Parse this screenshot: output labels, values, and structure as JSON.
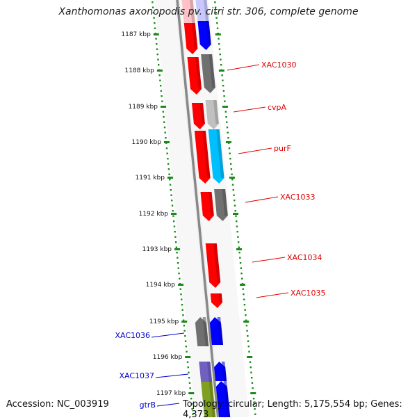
{
  "header": {
    "title": "Xanthomonas axonopodis pv. citri str. 306, complete genome"
  },
  "footer": {
    "accession": "Accession: NC_003919",
    "topology": "Topology: circular; Length: 5,175,554 bp; Genes: 4,373"
  },
  "ruler": {
    "labels": [
      "1187 kbp",
      "1188 kbp",
      "1189 kbp",
      "1190 kbp",
      "1191 kbp",
      "1192 kbp",
      "1193 kbp",
      "1194 kbp",
      "1195 kbp",
      "1196 kbp",
      "1197 kbp"
    ]
  },
  "gene_labels": [
    {
      "name": "XAC1030",
      "strand": "forward"
    },
    {
      "name": "cvpA",
      "strand": "forward"
    },
    {
      "name": "purF",
      "strand": "forward"
    },
    {
      "name": "XAC1033",
      "strand": "forward"
    },
    {
      "name": "XAC1034",
      "strand": "forward"
    },
    {
      "name": "XAC1035",
      "strand": "forward"
    },
    {
      "name": "XAC1036",
      "strand": "reverse"
    },
    {
      "name": "XAC1037",
      "strand": "reverse"
    },
    {
      "name": "gtrB",
      "strand": "reverse"
    }
  ],
  "colors": {
    "forward_label": "#e00000",
    "reverse_label": "#0000cc",
    "forward_gene": "#ff0000",
    "reverse_gene": "#0000ff",
    "cog_gray": "#707070",
    "cog_light": "#c0c0c0",
    "cog_cyan": "#00bfff",
    "cog_purple": "#7060c0",
    "cog_olive": "#7fa020",
    "ruler": "#1a8a1a",
    "backbone": "#888888"
  }
}
